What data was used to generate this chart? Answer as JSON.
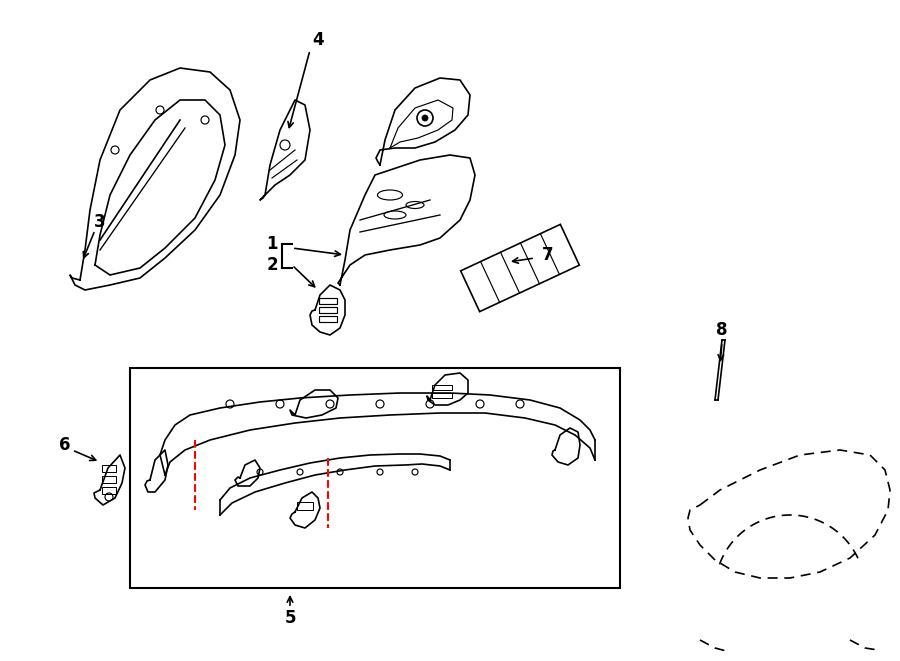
{
  "bg_color": "#ffffff",
  "line_color": "#000000",
  "red_color": "#ff0000",
  "fig_width": 9.0,
  "fig_height": 6.61,
  "dpi": 100
}
